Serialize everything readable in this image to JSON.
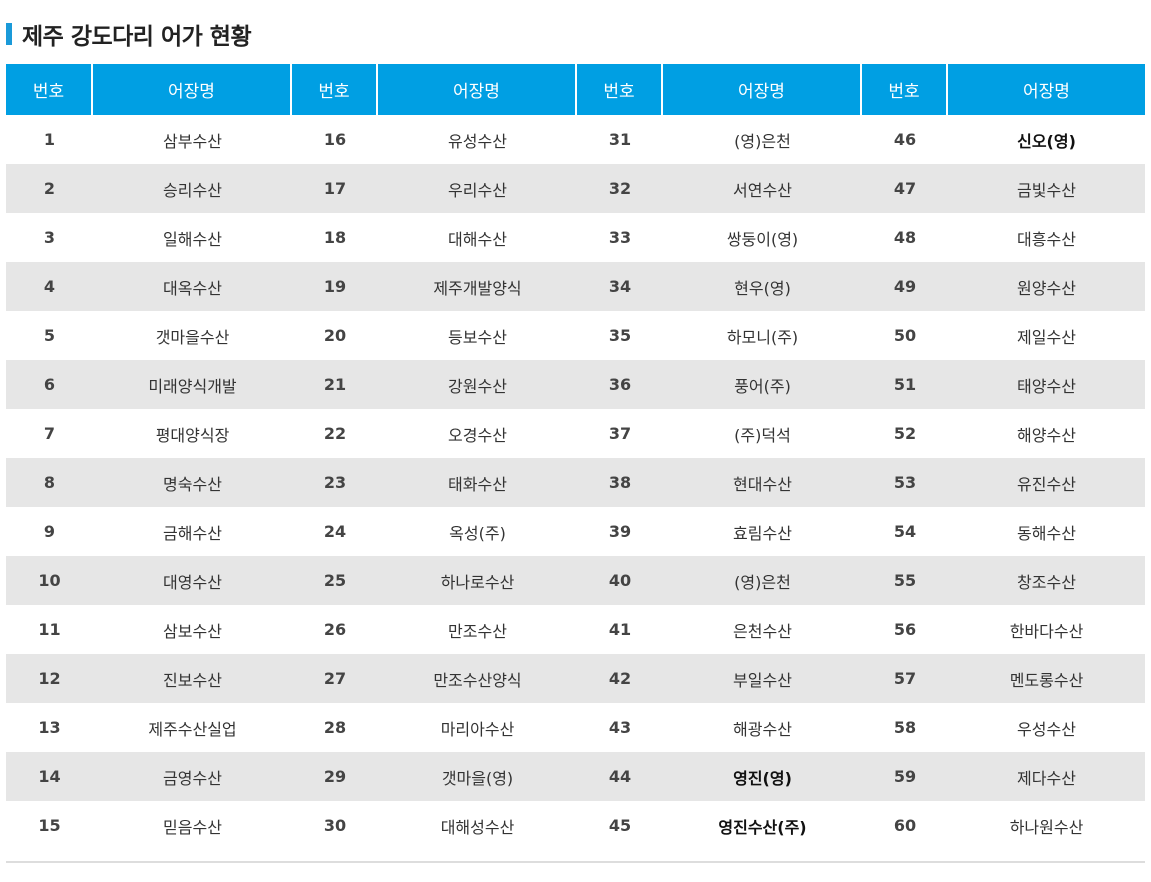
{
  "title": "제주 강도다리 어가 현황",
  "header": [
    "번호",
    "어장명",
    "번호",
    "어장명",
    "번호",
    "어장명",
    "번호",
    "어장명"
  ],
  "rows": [
    [
      {
        "t": "1"
      },
      {
        "t": "삼부수산"
      },
      {
        "t": "16"
      },
      {
        "t": "유성수산"
      },
      {
        "t": "31"
      },
      {
        "t": "(영)은천"
      },
      {
        "t": "46"
      },
      {
        "t": "신오(영)",
        "b": true
      }
    ],
    [
      {
        "t": "2"
      },
      {
        "t": "승리수산"
      },
      {
        "t": "17"
      },
      {
        "t": "우리수산"
      },
      {
        "t": "32"
      },
      {
        "t": "서연수산"
      },
      {
        "t": "47"
      },
      {
        "t": "금빛수산"
      }
    ],
    [
      {
        "t": "3"
      },
      {
        "t": "일해수산"
      },
      {
        "t": "18"
      },
      {
        "t": "대해수산"
      },
      {
        "t": "33"
      },
      {
        "t": "쌍둥이(영)"
      },
      {
        "t": "48"
      },
      {
        "t": "대흥수산"
      }
    ],
    [
      {
        "t": "4"
      },
      {
        "t": "대옥수산"
      },
      {
        "t": "19"
      },
      {
        "t": "제주개발양식"
      },
      {
        "t": "34"
      },
      {
        "t": "현우(영)"
      },
      {
        "t": "49"
      },
      {
        "t": "원양수산"
      }
    ],
    [
      {
        "t": "5"
      },
      {
        "t": "갯마을수산"
      },
      {
        "t": "20"
      },
      {
        "t": "등보수산"
      },
      {
        "t": "35"
      },
      {
        "t": "하모니(주)"
      },
      {
        "t": "50"
      },
      {
        "t": "제일수산"
      }
    ],
    [
      {
        "t": "6"
      },
      {
        "t": "미래양식개발"
      },
      {
        "t": "21"
      },
      {
        "t": "강원수산"
      },
      {
        "t": "36"
      },
      {
        "t": "풍어(주)"
      },
      {
        "t": "51"
      },
      {
        "t": "태양수산"
      }
    ],
    [
      {
        "t": "7"
      },
      {
        "t": "평대양식장"
      },
      {
        "t": "22"
      },
      {
        "t": "오경수산"
      },
      {
        "t": "37"
      },
      {
        "t": "(주)덕석"
      },
      {
        "t": "52"
      },
      {
        "t": "해양수산"
      }
    ],
    [
      {
        "t": "8"
      },
      {
        "t": "명숙수산"
      },
      {
        "t": "23"
      },
      {
        "t": "태화수산"
      },
      {
        "t": "38"
      },
      {
        "t": "현대수산"
      },
      {
        "t": "53"
      },
      {
        "t": "유진수산"
      }
    ],
    [
      {
        "t": "9"
      },
      {
        "t": "금해수산"
      },
      {
        "t": "24"
      },
      {
        "t": "옥성(주)"
      },
      {
        "t": "39"
      },
      {
        "t": "효림수산"
      },
      {
        "t": "54"
      },
      {
        "t": "동해수산"
      }
    ],
    [
      {
        "t": "10"
      },
      {
        "t": "대영수산"
      },
      {
        "t": "25"
      },
      {
        "t": "하나로수산"
      },
      {
        "t": "40"
      },
      {
        "t": "(영)은천"
      },
      {
        "t": "55"
      },
      {
        "t": "창조수산"
      }
    ],
    [
      {
        "t": "11"
      },
      {
        "t": "삼보수산"
      },
      {
        "t": "26"
      },
      {
        "t": "만조수산"
      },
      {
        "t": "41"
      },
      {
        "t": "은천수산"
      },
      {
        "t": "56"
      },
      {
        "t": "한바다수산"
      }
    ],
    [
      {
        "t": "12"
      },
      {
        "t": "진보수산"
      },
      {
        "t": "27"
      },
      {
        "t": "만조수산양식"
      },
      {
        "t": "42"
      },
      {
        "t": "부일수산"
      },
      {
        "t": "57"
      },
      {
        "t": "멘도롱수산"
      }
    ],
    [
      {
        "t": "13"
      },
      {
        "t": "제주수산실업"
      },
      {
        "t": "28"
      },
      {
        "t": "마리아수산"
      },
      {
        "t": "43"
      },
      {
        "t": "해광수산"
      },
      {
        "t": "58"
      },
      {
        "t": "우성수산"
      }
    ],
    [
      {
        "t": "14"
      },
      {
        "t": "금영수산"
      },
      {
        "t": "29"
      },
      {
        "t": "갯마을(영)"
      },
      {
        "t": "44"
      },
      {
        "t": "영진(영)",
        "b": true
      },
      {
        "t": "59"
      },
      {
        "t": "제다수산"
      }
    ],
    [
      {
        "t": "15"
      },
      {
        "t": "믿음수산"
      },
      {
        "t": "30"
      },
      {
        "t": "대해성수산"
      },
      {
        "t": "45"
      },
      {
        "t": "영진수산(주)",
        "b": true
      },
      {
        "t": "60"
      },
      {
        "t": "하나원수산"
      }
    ]
  ]
}
